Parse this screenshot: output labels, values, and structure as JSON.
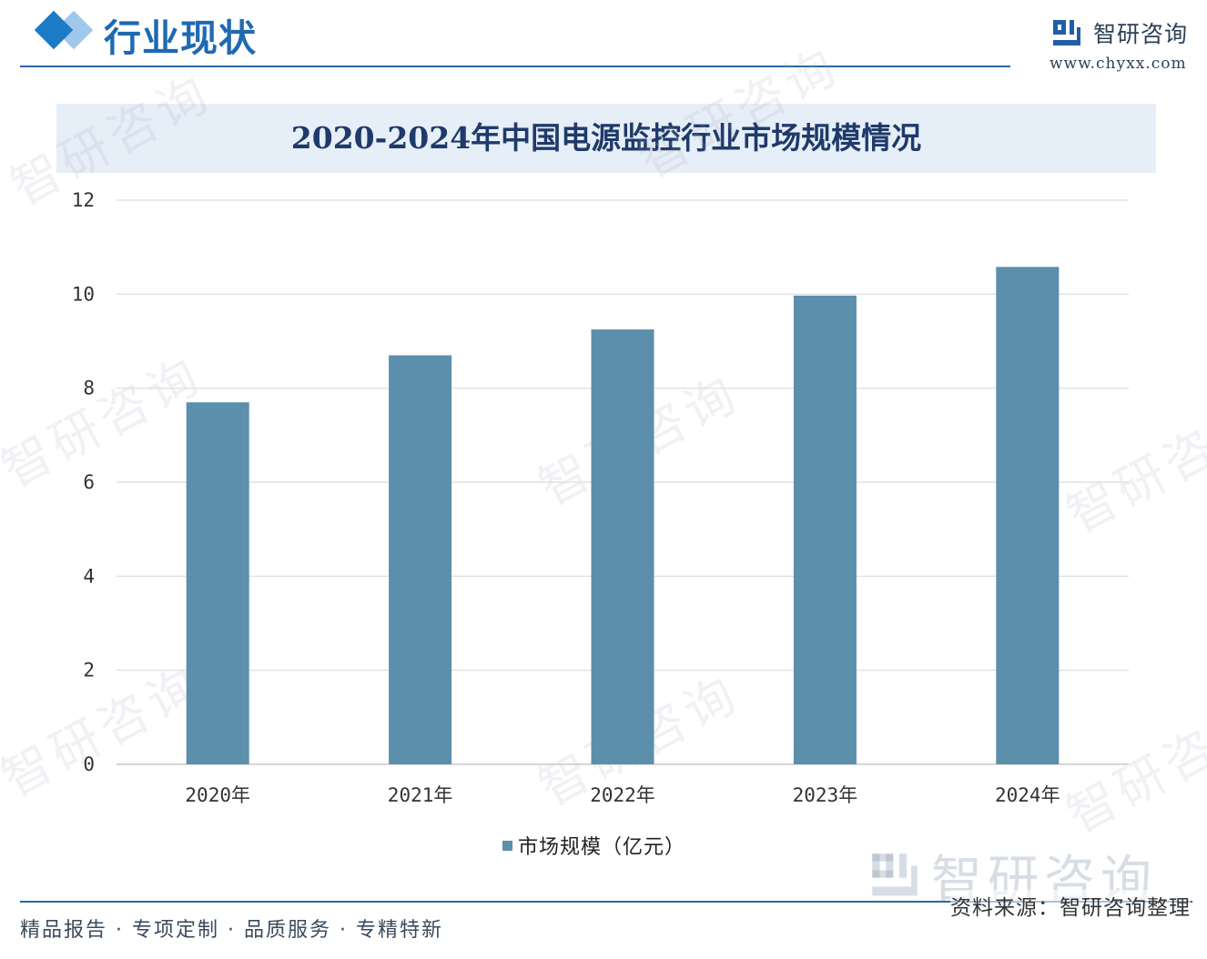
{
  "header": {
    "section_title": "行业现状",
    "brand_name": "智研咨询",
    "brand_url": "www.chyxx.com"
  },
  "watermark_text": "智研咨询",
  "chart_data": {
    "type": "bar",
    "title": "2020-2024年中国电源监控行业市场规模情况",
    "categories": [
      "2020年",
      "2021年",
      "2022年",
      "2023年",
      "2024年"
    ],
    "series": [
      {
        "name": "市场规模（亿元）",
        "values": [
          7.7,
          8.7,
          9.25,
          9.97,
          10.58
        ],
        "color": "#5b8fab"
      }
    ],
    "ylim": [
      0,
      12
    ],
    "yticks": [
      "0",
      "2",
      "4",
      "6",
      "8",
      "10",
      "12"
    ],
    "grid": true,
    "legend_position": "bottom",
    "xlabel": "",
    "ylabel": ""
  },
  "footer": {
    "tagline": "精品报告 · 专项定制 · 品质服务 · 专精特新",
    "source": "资料来源：智研咨询整理"
  },
  "colors": {
    "accent": "#1f69b3",
    "bar": "#5b8fab",
    "banner": "#e6eef7"
  }
}
